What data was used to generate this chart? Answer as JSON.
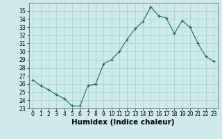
{
  "x": [
    0,
    1,
    2,
    3,
    4,
    5,
    6,
    7,
    8,
    9,
    10,
    11,
    12,
    13,
    14,
    15,
    16,
    17,
    18,
    19,
    20,
    21,
    22,
    23
  ],
  "y": [
    26.5,
    25.8,
    25.3,
    24.7,
    24.2,
    23.3,
    23.3,
    25.8,
    26.0,
    28.5,
    29.0,
    30.0,
    31.5,
    32.8,
    33.7,
    35.5,
    34.4,
    34.1,
    32.2,
    33.8,
    33.0,
    31.0,
    29.4,
    28.8
  ],
  "line_color": "#1a6b5a",
  "marker": "+",
  "marker_size": 3.5,
  "bg_color": "#ceeaea",
  "grid_color": "#aacece",
  "xlabel": "Humidex (Indice chaleur)",
  "ylim": [
    23,
    36
  ],
  "xlim": [
    -0.5,
    23.5
  ],
  "yticks": [
    23,
    24,
    25,
    26,
    27,
    28,
    29,
    30,
    31,
    32,
    33,
    34,
    35
  ],
  "xticks": [
    0,
    1,
    2,
    3,
    4,
    5,
    6,
    7,
    8,
    9,
    10,
    11,
    12,
    13,
    14,
    15,
    16,
    17,
    18,
    19,
    20,
    21,
    22,
    23
  ],
  "tick_fontsize": 5.5,
  "xlabel_fontsize": 7.5
}
